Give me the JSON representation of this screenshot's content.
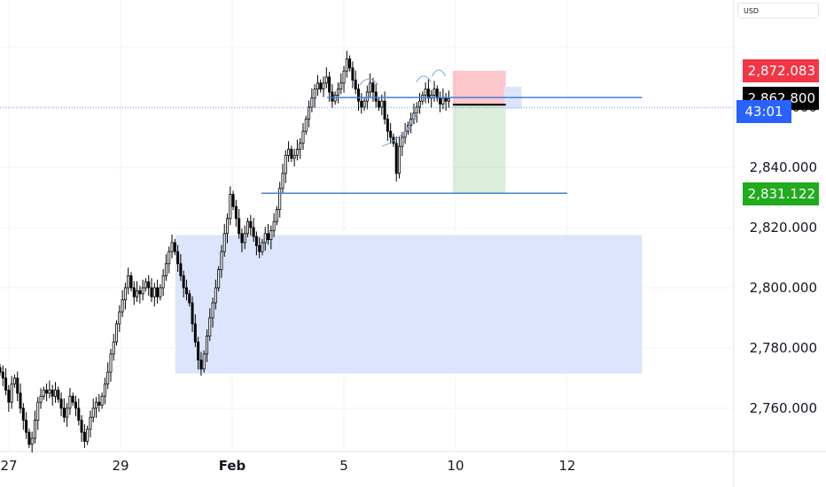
{
  "chart_data": {
    "type": "candlestick",
    "symbol_currency": "USD",
    "y_ticks": [
      2840,
      2820,
      2800,
      2780,
      2760
    ],
    "y_tick_labels": [
      "2,840.000",
      "2,820.000",
      "2,800.000",
      "2,780.000",
      "2,760.000"
    ],
    "x_ticks": [
      {
        "label": "27",
        "x": 0.3,
        "bold": false
      },
      {
        "label": "29",
        "x": 2.3,
        "bold": false
      },
      {
        "label": "Feb",
        "x": 4.3,
        "bold": true
      },
      {
        "label": "5",
        "x": 6.3,
        "bold": false
      },
      {
        "label": "10",
        "x": 8.3,
        "bold": false
      },
      {
        "label": "12",
        "x": 10.3,
        "bold": false
      }
    ],
    "x_range": [
      0.2,
      11.3
    ],
    "y_range": [
      2747,
      2887
    ],
    "price_tags": [
      {
        "label": "2,872.083",
        "value": 2872.083,
        "color": "#f23645",
        "kind": "stop-loss"
      },
      {
        "label": "2,862.800",
        "value": 2862.8,
        "color": "#000000",
        "kind": "current-price"
      },
      {
        "label": "43:01",
        "value": 2858.5,
        "color": "#2962ff",
        "kind": "countdown"
      },
      {
        "label": "2,831.122",
        "value": 2831.122,
        "color": "#22ab1e",
        "kind": "take-profit"
      }
    ],
    "partial_label": "000",
    "last_price_line": 2859.8,
    "entry_price": 2860.8,
    "demand_zone": {
      "x_from": 3.28,
      "x_to": 11.64,
      "y_from": 2817.5,
      "y_to": 2771.5,
      "color": "#dce5fb"
    },
    "resistance_line": {
      "x_from": 6.0,
      "x_to": 11.64,
      "y": 2863.2,
      "color": "#4a7fd4"
    },
    "support_line": {
      "x_from": 4.82,
      "x_to": 10.3,
      "y": 2831.4,
      "color": "#4a7fd4"
    },
    "short_position": {
      "x_from": 8.25,
      "x_to": 9.2,
      "entry": 2860.8,
      "stop": 2872.083,
      "target": 2831.122
    },
    "candles_close": [
      2772,
      2770,
      2766,
      2762,
      2768,
      2770,
      2765,
      2760,
      2756,
      2752,
      2748,
      2750,
      2756,
      2762,
      2764,
      2766,
      2765,
      2766,
      2764,
      2766,
      2763,
      2760,
      2757,
      2760,
      2764,
      2762,
      2760,
      2756,
      2752,
      2749,
      2753,
      2757,
      2760,
      2762,
      2761,
      2764,
      2768,
      2772,
      2778,
      2782,
      2788,
      2792,
      2796,
      2800,
      2804,
      2800,
      2797,
      2799,
      2798,
      2800,
      2802,
      2800,
      2797,
      2800,
      2797,
      2800,
      2804,
      2808,
      2812,
      2815,
      2812,
      2808,
      2804,
      2800,
      2798,
      2795,
      2788,
      2782,
      2776,
      2773,
      2778,
      2784,
      2790,
      2795,
      2800,
      2806,
      2812,
      2818,
      2823,
      2831,
      2827,
      2823,
      2818,
      2815,
      2818,
      2822,
      2820,
      2817,
      2814,
      2812,
      2815,
      2818,
      2816,
      2819,
      2822,
      2826,
      2833,
      2838,
      2844,
      2846,
      2843,
      2844,
      2846,
      2848,
      2852,
      2856,
      2860,
      2863,
      2866,
      2868,
      2866,
      2868,
      2870,
      2865,
      2862,
      2864,
      2866,
      2868,
      2872,
      2876,
      2873,
      2869,
      2866,
      2862,
      2860,
      2862,
      2865,
      2868,
      2865,
      2862,
      2860,
      2862,
      2856,
      2852,
      2850,
      2848,
      2838,
      2847,
      2850,
      2852,
      2854,
      2856,
      2858,
      2860,
      2862,
      2864,
      2866,
      2863,
      2864,
      2866,
      2863,
      2861,
      2863,
      2862,
      2862.8
    ]
  }
}
